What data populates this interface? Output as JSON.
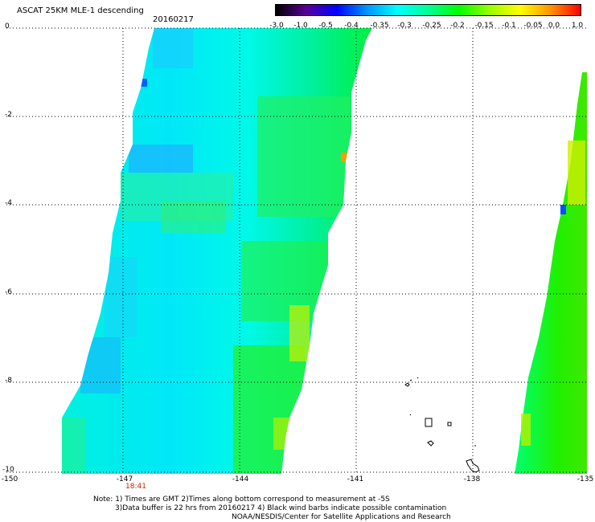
{
  "header": {
    "title": "ASCAT 25KM MLE-1 descending",
    "date": "20160217"
  },
  "colorbar": {
    "labels": [
      "-3.0",
      "-1.0",
      "-0.5",
      "-0.4",
      "-0.35",
      "-0.3",
      "-0.25",
      "-0.2",
      "-0.15",
      "-0.1",
      "-0.05",
      "0.0",
      "1.0"
    ],
    "colors": [
      "#000000",
      "#5a0096",
      "#0000ff",
      "#0096ff",
      "#00ffff",
      "#00ff96",
      "#00ff00",
      "#96ff00",
      "#ffff00",
      "#ff9600",
      "#ff0000"
    ]
  },
  "axes": {
    "y_labels": [
      "0",
      "-2",
      "-4",
      "-6",
      "-8",
      "-10"
    ],
    "x_labels": [
      "-150",
      "-147",
      "-144",
      "-141",
      "-138",
      "-135"
    ]
  },
  "time_label": "18:41",
  "notes": {
    "line1": "Note: 1) Times are GMT 2)Times along bottom correspond to measurement at -5S",
    "line2": "3)Data buffer is 22 hrs from 20160217 4) Black wind barbs indicate possible contamination",
    "line3": "NOAA/NESDIS/Center for Satellite Applications and Research"
  }
}
